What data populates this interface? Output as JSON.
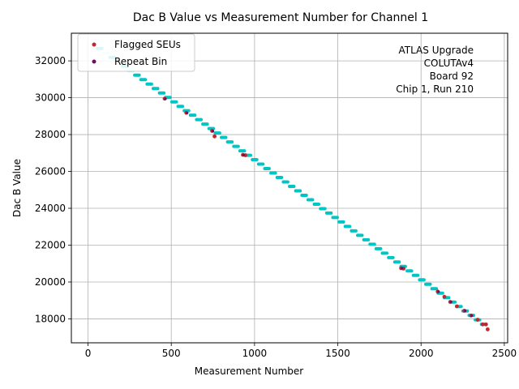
{
  "chart_data": {
    "type": "scatter",
    "title": "Dac B Value vs Measurement Number for Channel 1",
    "xlabel": "Measurement Number",
    "ylabel": "Dac B Value",
    "xlim": [
      -100,
      2520
    ],
    "ylim": [
      16700,
      33500
    ],
    "xticks": [
      0,
      500,
      1000,
      1500,
      2000,
      2500
    ],
    "xtick_labels": [
      "0",
      "500",
      "1000",
      "1500",
      "2000",
      "2500"
    ],
    "yticks": [
      18000,
      20000,
      22000,
      24000,
      26000,
      28000,
      30000,
      32000
    ],
    "ytick_labels": [
      "18000",
      "20000",
      "22000",
      "24000",
      "26000",
      "28000",
      "30000",
      "32000"
    ],
    "grid": true,
    "legend_position": "top-left",
    "annotation_lines": [
      "ATLAS Upgrade",
      "COLUTAv4",
      "Board 92",
      "Chip 1, Run 210"
    ],
    "main_line": {
      "color": "#00c5c5",
      "points": [
        [
          20,
          33000
        ],
        [
          2400,
          17550
        ]
      ],
      "bin_count": 64
    },
    "series": [
      {
        "name": "Flagged SEUs",
        "color": "#c0282d",
        "points": [
          [
            460,
            29950
          ],
          [
            590,
            29180
          ],
          [
            745,
            28200
          ],
          [
            760,
            27900
          ],
          [
            930,
            26900
          ],
          [
            945,
            26880
          ],
          [
            1880,
            20750
          ],
          [
            1895,
            20730
          ],
          [
            2100,
            19480
          ],
          [
            2140,
            19200
          ],
          [
            2175,
            18920
          ],
          [
            2215,
            18680
          ],
          [
            2260,
            18440
          ],
          [
            2300,
            18180
          ],
          [
            2340,
            17950
          ],
          [
            2370,
            17700
          ],
          [
            2390,
            17700
          ],
          [
            2400,
            17430
          ]
        ]
      },
      {
        "name": "Repeat Bin",
        "color": "#6a0f6a",
        "points": [
          [
            465,
            29940
          ],
          [
            595,
            29170
          ],
          [
            750,
            28190
          ],
          [
            935,
            26890
          ],
          [
            1885,
            20745
          ],
          [
            2105,
            19475
          ],
          [
            2180,
            18915
          ],
          [
            2265,
            18435
          ],
          [
            2305,
            18175
          ]
        ]
      }
    ]
  }
}
